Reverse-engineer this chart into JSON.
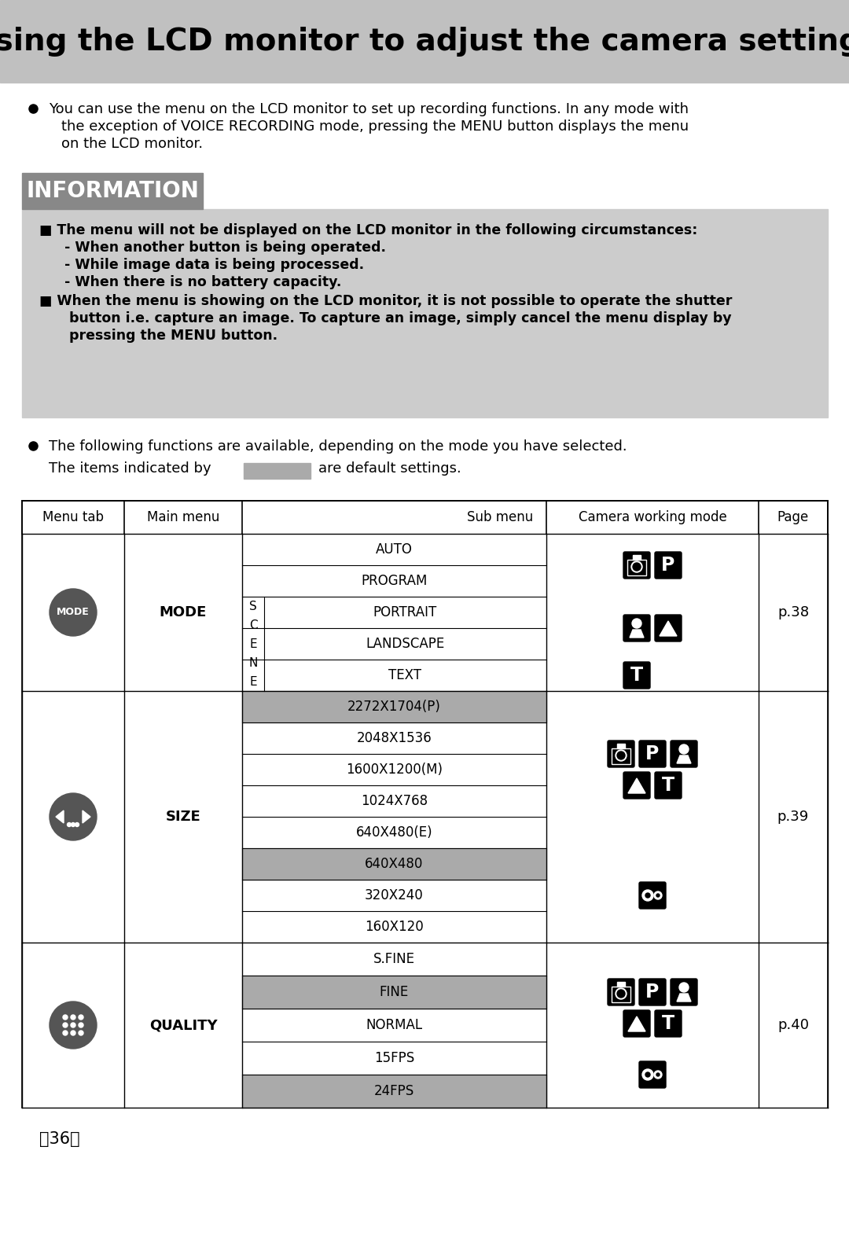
{
  "title": "Using the LCD monitor to adjust the camera settings",
  "bg_color": "#ffffff",
  "title_bg_color": "#c0c0c0",
  "info_bg_color": "#cccccc",
  "info_header_bg": "#888888",
  "bullet_text1_line1": "You can use the menu on the LCD monitor to set up recording functions. In any mode with",
  "bullet_text1_line2": "the exception of VOICE RECORDING mode, pressing the MENU button displays the menu",
  "bullet_text1_line3": "on the LCD monitor.",
  "info_title": "INFORMATION",
  "info_line1": "■ The menu will not be displayed on the LCD monitor in the following circumstances:",
  "info_line2": "  - When another button is being operated.",
  "info_line3": "  - While image data is being processed.",
  "info_line4": "  - When there is no battery capacity.",
  "info_line5": "■ When the menu is showing on the LCD monitor, it is not possible to operate the shutter",
  "info_line6": "   button i.e. capture an image. To capture an image, simply cancel the menu display by",
  "info_line7": "   pressing the MENU button.",
  "bullet_text2": "The following functions are available, depending on the mode you have selected.",
  "default_text": "The items indicated by",
  "default_text2": "are default settings.",
  "table_headers": [
    "Menu tab",
    "Main menu",
    "Sub menu",
    "Camera working mode",
    "Page"
  ],
  "mode_sub_items": [
    "AUTO",
    "PROGRAM",
    "PORTRAIT",
    "LANDSCAPE",
    "TEXT"
  ],
  "size_items": [
    "2272X1704(P)",
    "2048X1536",
    "1600X1200(M)",
    "1024X768",
    "640X480(E)",
    "640X480",
    "320X240",
    "160X120"
  ],
  "size_highlight": [
    true,
    false,
    false,
    false,
    false,
    true,
    false,
    false
  ],
  "quality_items": [
    "S.FINE",
    "FINE",
    "NORMAL",
    "15FPS",
    "24FPS"
  ],
  "quality_highlight": [
    false,
    true,
    false,
    false,
    true
  ],
  "page_num": "〆36〇",
  "gray_highlight_color": "#aaaaaa"
}
